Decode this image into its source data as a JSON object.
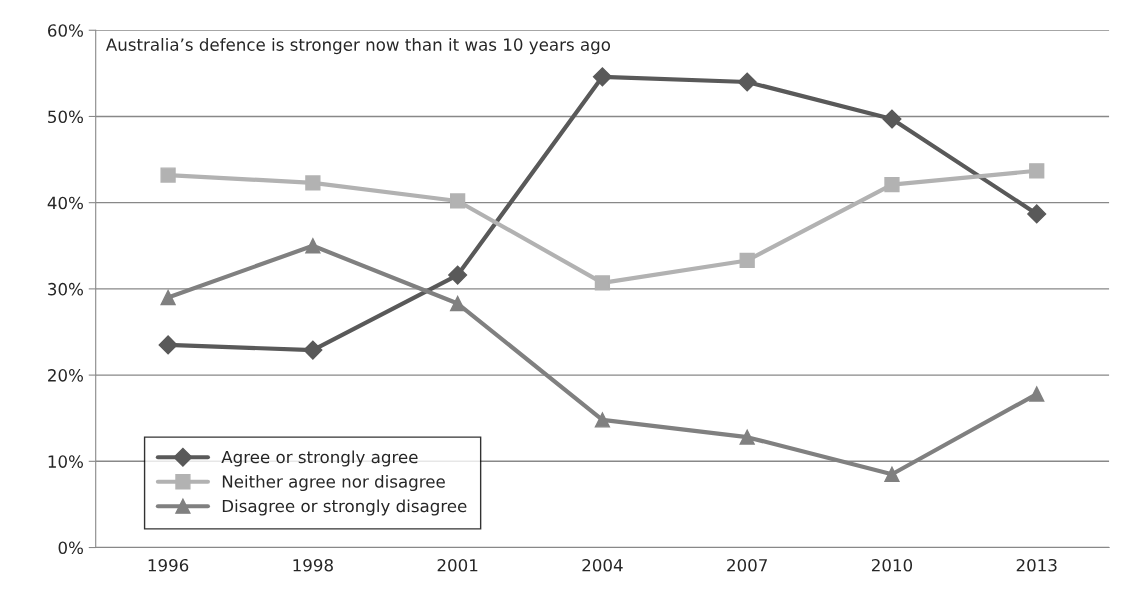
{
  "chart_data": {
    "type": "line",
    "categories": [
      "1996",
      "1998",
      "2001",
      "2004",
      "2007",
      "2010",
      "2013"
    ],
    "series": [
      {
        "name": "Agree or strongly agree",
        "color": "#595959",
        "marker": "diamond",
        "values": [
          23.5,
          22.9,
          31.6,
          54.6,
          54.0,
          49.7,
          38.7
        ]
      },
      {
        "name": "Neither agree nor disagree",
        "color": "#b2b2b2",
        "marker": "square",
        "values": [
          43.2,
          42.3,
          40.2,
          30.7,
          33.3,
          42.1,
          43.7
        ]
      },
      {
        "name": "Disagree or strongly disagree",
        "color": "#808080",
        "marker": "triangle",
        "values": [
          29.0,
          35.0,
          28.3,
          14.8,
          12.8,
          8.5,
          17.8
        ]
      }
    ],
    "ylim": [
      0,
      60
    ],
    "yticks": [
      {
        "value": 0,
        "label": "0%"
      },
      {
        "value": 10,
        "label": "10%"
      },
      {
        "value": 20,
        "label": "20%"
      },
      {
        "value": 30,
        "label": "30%"
      },
      {
        "value": 40,
        "label": "40%"
      },
      {
        "value": 50,
        "label": "50%"
      },
      {
        "value": 60,
        "label": "60%"
      }
    ],
    "annotations": [
      "Australia’s defence is stronger now than it was 10 years ago"
    ],
    "grid": "y",
    "legend": "bottom left",
    "line_style": "solid"
  }
}
